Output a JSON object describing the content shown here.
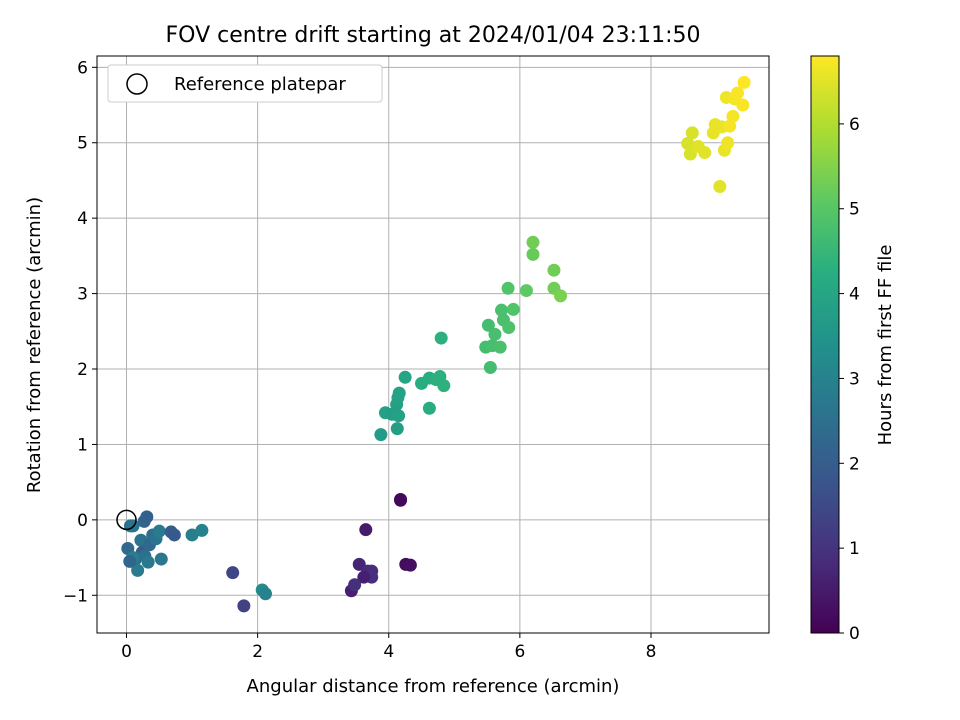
{
  "chart_data": {
    "type": "scatter",
    "title": "FOV centre drift starting at 2024/01/04 23:11:50",
    "xlabel": "Angular distance from reference (arcmin)",
    "ylabel": "Rotation from reference (arcmin)",
    "xlim": [
      -0.45,
      9.8
    ],
    "ylim": [
      -1.5,
      6.15
    ],
    "xticks": [
      0,
      2,
      4,
      6,
      8
    ],
    "yticks": [
      -1,
      0,
      1,
      2,
      3,
      4,
      5,
      6
    ],
    "grid": true,
    "legend": {
      "placement": "top-left",
      "entries": [
        "Reference platepar"
      ]
    },
    "reference_point": {
      "label": "Reference platepar",
      "x": 0.0,
      "y": 0.0
    },
    "colorbar": {
      "label": "Hours from first FF file",
      "colormap": "viridis",
      "range": [
        0,
        6.8
      ],
      "ticks": [
        0,
        1,
        2,
        3,
        4,
        5,
        6
      ]
    },
    "series": [
      {
        "points": [
          {
            "x": 4.18,
            "y": 0.27,
            "c": 0.1
          },
          {
            "x": 4.18,
            "y": 0.26,
            "c": 0.15
          },
          {
            "x": 4.26,
            "y": -0.59,
            "c": 0.2
          },
          {
            "x": 4.33,
            "y": -0.6,
            "c": 0.25
          },
          {
            "x": 3.65,
            "y": -0.13,
            "c": 0.5
          },
          {
            "x": 3.55,
            "y": -0.59,
            "c": 0.7
          },
          {
            "x": 3.68,
            "y": -0.68,
            "c": 0.8
          },
          {
            "x": 3.74,
            "y": -0.68,
            "c": 0.85
          },
          {
            "x": 3.74,
            "y": -0.76,
            "c": 0.9
          },
          {
            "x": 3.62,
            "y": -0.76,
            "c": 0.6
          },
          {
            "x": 3.43,
            "y": -0.94,
            "c": 0.6
          },
          {
            "x": 3.48,
            "y": -0.86,
            "c": 0.9
          },
          {
            "x": 1.62,
            "y": -0.7,
            "c": 1.4
          },
          {
            "x": 1.79,
            "y": -1.14,
            "c": 1.3
          },
          {
            "x": 2.07,
            "y": -0.93,
            "c": 3.2
          },
          {
            "x": 2.12,
            "y": -0.98,
            "c": 3.0
          },
          {
            "x": 0.02,
            "y": -0.38,
            "c": 2.3
          },
          {
            "x": 0.06,
            "y": -0.08,
            "c": 2.5
          },
          {
            "x": 0.1,
            "y": -0.08,
            "c": 2.6
          },
          {
            "x": 0.13,
            "y": -0.53,
            "c": 2.4
          },
          {
            "x": 0.17,
            "y": -0.67,
            "c": 2.8
          },
          {
            "x": 0.22,
            "y": -0.27,
            "c": 2.6
          },
          {
            "x": 0.27,
            "y": -0.02,
            "c": 2.2
          },
          {
            "x": 0.31,
            "y": 0.04,
            "c": 2.1
          },
          {
            "x": 0.24,
            "y": -0.43,
            "c": 2.0
          },
          {
            "x": 0.28,
            "y": -0.48,
            "c": 2.5
          },
          {
            "x": 0.33,
            "y": -0.56,
            "c": 2.7
          },
          {
            "x": 0.35,
            "y": -0.33,
            "c": 2.3
          },
          {
            "x": 0.4,
            "y": -0.2,
            "c": 2.4
          },
          {
            "x": 0.45,
            "y": -0.25,
            "c": 2.6
          },
          {
            "x": 0.5,
            "y": -0.15,
            "c": 2.8
          },
          {
            "x": 0.53,
            "y": -0.52,
            "c": 2.7
          },
          {
            "x": 0.1,
            "y": -0.5,
            "c": 2.9
          },
          {
            "x": 0.05,
            "y": -0.55,
            "c": 2.2
          },
          {
            "x": 0.68,
            "y": -0.16,
            "c": 2.0
          },
          {
            "x": 0.73,
            "y": -0.2,
            "c": 1.9
          },
          {
            "x": 1.0,
            "y": -0.2,
            "c": 2.9
          },
          {
            "x": 1.15,
            "y": -0.14,
            "c": 3.0
          },
          {
            "x": 3.88,
            "y": 1.13,
            "c": 3.7
          },
          {
            "x": 4.13,
            "y": 1.21,
            "c": 3.8
          },
          {
            "x": 3.95,
            "y": 1.42,
            "c": 3.9
          },
          {
            "x": 4.05,
            "y": 1.4,
            "c": 3.8
          },
          {
            "x": 4.15,
            "y": 1.38,
            "c": 3.9
          },
          {
            "x": 4.12,
            "y": 1.53,
            "c": 3.85
          },
          {
            "x": 4.14,
            "y": 1.62,
            "c": 3.9
          },
          {
            "x": 4.16,
            "y": 1.68,
            "c": 3.9
          },
          {
            "x": 4.25,
            "y": 1.89,
            "c": 4.0
          },
          {
            "x": 4.5,
            "y": 1.81,
            "c": 4.2
          },
          {
            "x": 4.62,
            "y": 1.88,
            "c": 4.2
          },
          {
            "x": 4.72,
            "y": 1.86,
            "c": 4.3
          },
          {
            "x": 4.78,
            "y": 1.9,
            "c": 4.3
          },
          {
            "x": 4.84,
            "y": 1.78,
            "c": 4.35
          },
          {
            "x": 4.62,
            "y": 1.48,
            "c": 4.2
          },
          {
            "x": 4.8,
            "y": 2.41,
            "c": 4.3
          },
          {
            "x": 5.48,
            "y": 2.29,
            "c": 4.7
          },
          {
            "x": 5.55,
            "y": 2.02,
            "c": 4.7
          },
          {
            "x": 5.58,
            "y": 2.31,
            "c": 4.75
          },
          {
            "x": 5.62,
            "y": 2.46,
            "c": 4.75
          },
          {
            "x": 5.52,
            "y": 2.58,
            "c": 4.7
          },
          {
            "x": 5.7,
            "y": 2.29,
            "c": 4.8
          },
          {
            "x": 5.72,
            "y": 2.78,
            "c": 4.8
          },
          {
            "x": 5.75,
            "y": 2.65,
            "c": 4.8
          },
          {
            "x": 5.83,
            "y": 2.55,
            "c": 4.85
          },
          {
            "x": 5.9,
            "y": 2.79,
            "c": 4.9
          },
          {
            "x": 5.82,
            "y": 3.07,
            "c": 4.9
          },
          {
            "x": 6.1,
            "y": 3.04,
            "c": 5.1
          },
          {
            "x": 6.2,
            "y": 3.52,
            "c": 5.2
          },
          {
            "x": 6.2,
            "y": 3.68,
            "c": 5.3
          },
          {
            "x": 6.52,
            "y": 3.31,
            "c": 5.3
          },
          {
            "x": 6.52,
            "y": 3.07,
            "c": 5.3
          },
          {
            "x": 6.62,
            "y": 2.97,
            "c": 5.4
          },
          {
            "x": 8.56,
            "y": 4.99,
            "c": 6.4
          },
          {
            "x": 8.6,
            "y": 4.85,
            "c": 6.4
          },
          {
            "x": 8.63,
            "y": 5.13,
            "c": 6.4
          },
          {
            "x": 8.72,
            "y": 4.95,
            "c": 6.5
          },
          {
            "x": 8.82,
            "y": 4.87,
            "c": 6.5
          },
          {
            "x": 8.95,
            "y": 5.13,
            "c": 6.55
          },
          {
            "x": 8.98,
            "y": 5.24,
            "c": 6.6
          },
          {
            "x": 9.05,
            "y": 4.42,
            "c": 6.5
          },
          {
            "x": 9.08,
            "y": 5.21,
            "c": 6.6
          },
          {
            "x": 9.12,
            "y": 4.9,
            "c": 6.6
          },
          {
            "x": 9.17,
            "y": 5.0,
            "c": 6.65
          },
          {
            "x": 9.15,
            "y": 5.6,
            "c": 6.65
          },
          {
            "x": 9.2,
            "y": 5.22,
            "c": 6.7
          },
          {
            "x": 9.25,
            "y": 5.35,
            "c": 6.7
          },
          {
            "x": 9.28,
            "y": 5.58,
            "c": 6.7
          },
          {
            "x": 9.32,
            "y": 5.66,
            "c": 6.75
          },
          {
            "x": 9.4,
            "y": 5.5,
            "c": 6.75
          },
          {
            "x": 9.42,
            "y": 5.8,
            "c": 6.8
          }
        ]
      }
    ]
  }
}
